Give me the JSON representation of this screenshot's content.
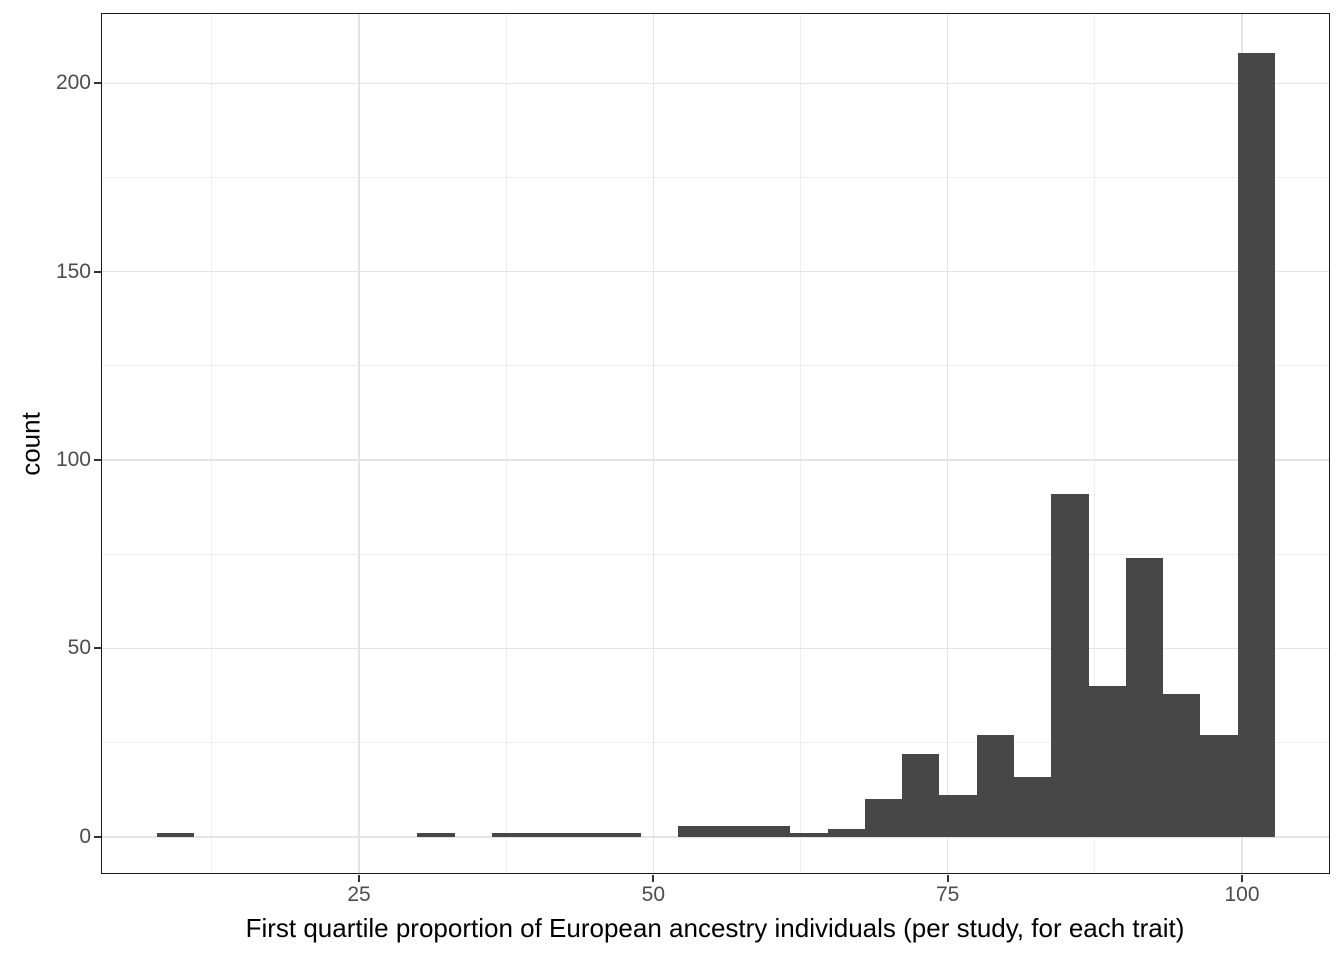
{
  "figure": {
    "x_axis_title": "First quartile proportion of European ancestry individuals (per study, for each trait)",
    "y_axis_title": "count"
  },
  "chart_data": {
    "type": "bar",
    "subtype": "histogram",
    "title": "",
    "xlabel": "First quartile proportion of European ancestry individuals (per study, for each trait)",
    "ylabel": "count",
    "bin_start": 7.8,
    "bin_width": 3.1667,
    "bin_counts": [
      1,
      0,
      0,
      0,
      0,
      0,
      0,
      1,
      0,
      1,
      1,
      1,
      1,
      0,
      3,
      3,
      3,
      1,
      2,
      10,
      22,
      11,
      27,
      16,
      91,
      40,
      74,
      38,
      27,
      208
    ],
    "x_ticks": [
      "25",
      "50",
      "75",
      "100"
    ],
    "x_tick_values": [
      25,
      50,
      75,
      100
    ],
    "y_ticks": [
      "0",
      "50",
      "100",
      "150",
      "200"
    ],
    "y_tick_values": [
      0,
      50,
      100,
      150,
      200
    ],
    "x_minor_values": [
      12.5,
      37.5,
      62.5,
      87.5
    ],
    "y_minor_values": [
      25,
      75,
      125,
      175
    ],
    "xlim": [
      3.17,
      107.39
    ],
    "ylim": [
      -9.6,
      218.4
    ],
    "grid": true,
    "legend": "none",
    "colors": {
      "bar_fill": "#474747",
      "grid_major": "#e4e4e4",
      "grid_minor": "#efefef",
      "panel_border": "#1a1a1a",
      "tick_mark": "#333333",
      "tick_label": "#4d4d4d",
      "axis_title": "#000000",
      "background": "#ffffff"
    }
  }
}
